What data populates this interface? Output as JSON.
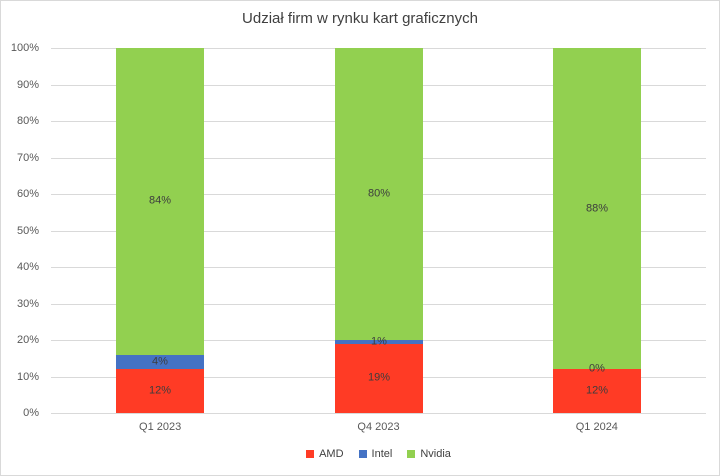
{
  "chart_data": {
    "type": "bar",
    "stacked": true,
    "title": "Udział firm w rynku kart graficznych",
    "categories": [
      "Q1 2023",
      "Q4 2023",
      "Q1 2024"
    ],
    "series": [
      {
        "name": "AMD",
        "color": "#FF3B25",
        "values": [
          12,
          19,
          12
        ]
      },
      {
        "name": "Intel",
        "color": "#4472C4",
        "values": [
          4,
          1,
          0
        ]
      },
      {
        "name": "Nvidia",
        "color": "#92D050",
        "values": [
          84,
          80,
          88
        ]
      }
    ],
    "data_labels": {
      "format": "{value}%",
      "values": [
        [
          "12%",
          "4%",
          "84%"
        ],
        [
          "19%",
          "1%",
          "80%"
        ],
        [
          "12%",
          "0%",
          "88%"
        ]
      ]
    },
    "xlabel": "",
    "ylabel": "",
    "ylim": [
      0,
      100
    ],
    "y_ticks": [
      "0%",
      "10%",
      "20%",
      "30%",
      "40%",
      "50%",
      "60%",
      "70%",
      "80%",
      "90%",
      "100%"
    ],
    "grid": true,
    "gridline_color": "#D9D9D9",
    "border_color": "#D9D9D9",
    "axis_text_color": "#595959",
    "title_color": "#404040",
    "legend_position": "bottom",
    "legend": [
      "AMD",
      "Intel",
      "Nvidia"
    ]
  }
}
